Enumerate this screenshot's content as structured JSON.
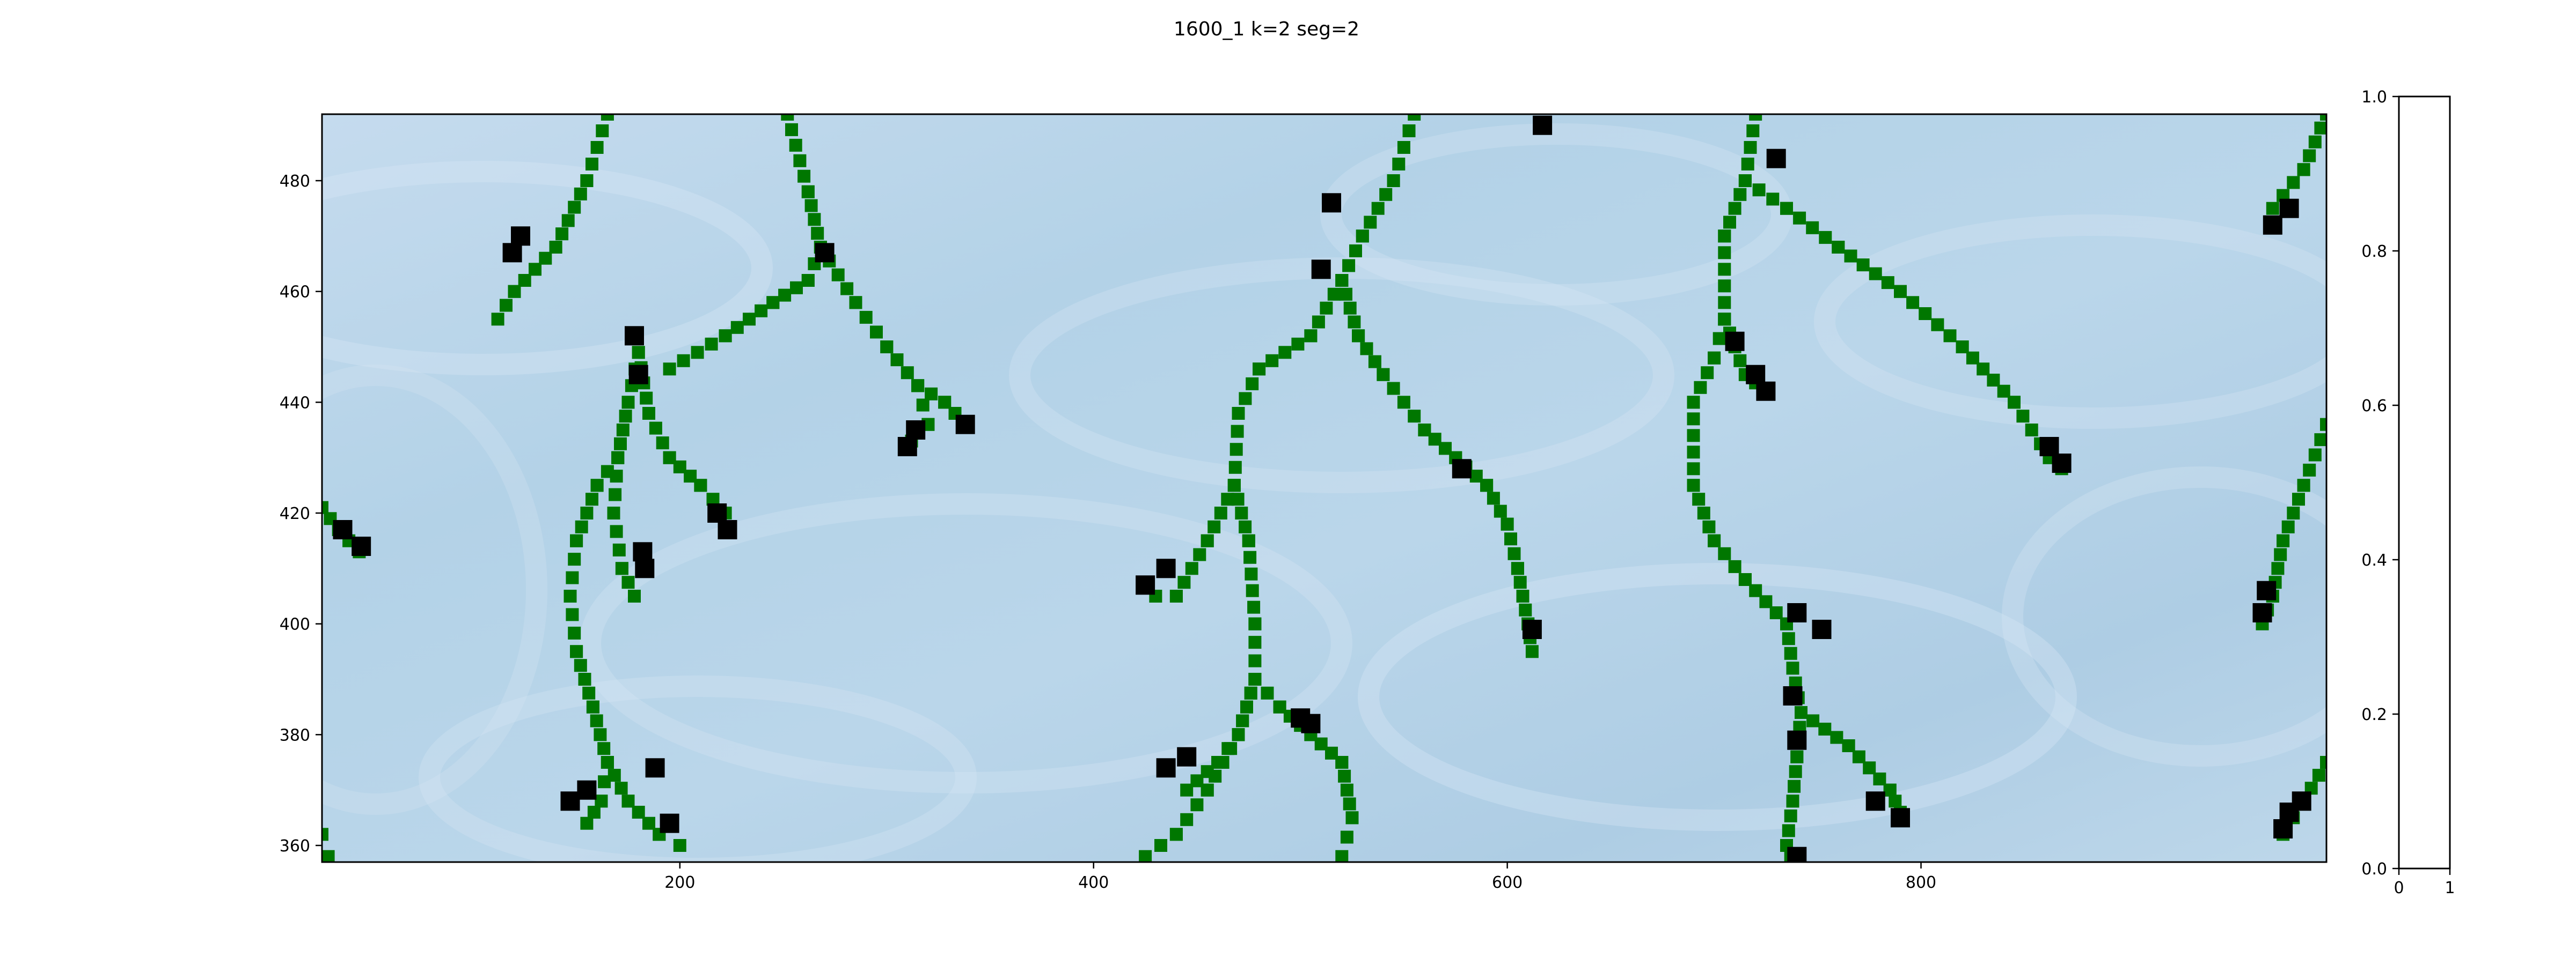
{
  "chart_data": [
    {
      "type": "heatmap",
      "title": "1600_1 k=2   seg=2",
      "xlim": [
        27,
        996
      ],
      "ylim": [
        357,
        492
      ],
      "x_ticks": [
        200,
        400,
        600,
        800
      ],
      "y_ticks": [
        360,
        380,
        400,
        420,
        440,
        460,
        480
      ],
      "x_tick_labels": [
        "200",
        "400",
        "600",
        "800"
      ],
      "y_tick_labels": [
        "360",
        "380",
        "400",
        "420",
        "440",
        "460",
        "480"
      ],
      "background": "blue-white smoothly varying field (colormap Blues)",
      "colors": {
        "background_light": "#cfe0f0",
        "background_mid": "#b5d3e8",
        "background_dark": "#a6c8e0",
        "path_marker": "#007700",
        "endpoint_marker": "#000000"
      },
      "series": [
        {
          "name": "",
          "color": "#007700",
          "paths": [
            [
              [
                165,
                492
              ],
              [
                155,
                480
              ],
              [
                140,
                468
              ],
              [
                120,
                460
              ],
              [
                112,
                455
              ]
            ],
            [
              [
                252,
                492
              ],
              [
                262,
                478
              ],
              [
                268,
                468
              ],
              [
                262,
                462
              ],
              [
                245,
                458
              ],
              [
                222,
                452
              ],
              [
                195,
                446
              ]
            ],
            [
              [
                268,
                468
              ],
              [
                285,
                458
              ],
              [
                300,
                450
              ],
              [
                315,
                443
              ],
              [
                320,
                436
              ],
              [
                312,
                433
              ]
            ],
            [
              [
                315,
                443
              ],
              [
                328,
                440
              ],
              [
                338,
                436
              ]
            ],
            [
              [
                180,
                449
              ],
              [
                175,
                440
              ],
              [
                170,
                430
              ],
              [
                168,
                420
              ],
              [
                172,
                410
              ],
              [
                178,
                405
              ]
            ],
            [
              [
                180,
                449
              ],
              [
                185,
                438
              ],
              [
                195,
                430
              ],
              [
                210,
                425
              ],
              [
                222,
                420
              ]
            ],
            [
              [
                170,
                430
              ],
              [
                160,
                425
              ],
              [
                150,
                415
              ],
              [
                147,
                405
              ],
              [
                150,
                395
              ],
              [
                158,
                385
              ],
              [
                165,
                375
              ],
              [
                162,
                368
              ],
              [
                155,
                364
              ]
            ],
            [
              [
                165,
                375
              ],
              [
                175,
                368
              ],
              [
                190,
                362
              ],
              [
                200,
                360
              ]
            ],
            [
              [
                555,
                492
              ],
              [
                545,
                480
              ],
              [
                530,
                470
              ],
              [
                520,
                462
              ],
              [
                505,
                452
              ],
              [
                480,
                446
              ],
              [
                470,
                438
              ],
              [
                468,
                425
              ],
              [
                455,
                415
              ],
              [
                440,
                405
              ],
              [
                430,
                405
              ]
            ],
            [
              [
                520,
                462
              ],
              [
                528,
                452
              ],
              [
                540,
                445
              ],
              [
                560,
                435
              ],
              [
                575,
                430
              ],
              [
                590,
                425
              ],
              [
                600,
                418
              ],
              [
                605,
                410
              ],
              [
                610,
                400
              ],
              [
                612,
                395
              ]
            ],
            [
              [
                468,
                425
              ],
              [
                475,
                415
              ],
              [
                478,
                400
              ],
              [
                478,
                390
              ],
              [
                470,
                380
              ],
              [
                460,
                375
              ],
              [
                445,
                370
              ]
            ],
            [
              [
                478,
                390
              ],
              [
                490,
                385
              ],
              [
                505,
                380
              ],
              [
                520,
                375
              ],
              [
                525,
                365
              ],
              [
                520,
                358
              ]
            ],
            [
              [
                478,
                390
              ],
              [
                470,
                380
              ],
              [
                455,
                370
              ],
              [
                440,
                362
              ],
              [
                425,
                358
              ]
            ],
            [
              [
                720,
                492
              ],
              [
                715,
                480
              ],
              [
                705,
                470
              ],
              [
                705,
                455
              ],
              [
                700,
                448
              ],
              [
                690,
                440
              ],
              [
                690,
                425
              ],
              [
                700,
                415
              ],
              [
                715,
                408
              ],
              [
                735,
                400
              ]
            ],
            [
              [
                715,
                480
              ],
              [
                735,
                475
              ],
              [
                760,
                468
              ],
              [
                790,
                460
              ],
              [
                820,
                450
              ],
              [
                845,
                440
              ],
              [
                862,
                430
              ],
              [
                868,
                428
              ]
            ],
            [
              [
                705,
                455
              ],
              [
                715,
                445
              ],
              [
                725,
                442
              ]
            ],
            [
              [
                735,
                400
              ],
              [
                738,
                392
              ],
              [
                742,
                384
              ],
              [
                740,
                376
              ],
              [
                738,
                368
              ],
              [
                735,
                360
              ],
              [
                737,
                358
              ]
            ],
            [
              [
                742,
                384
              ],
              [
                765,
                378
              ],
              [
                785,
                370
              ],
              [
                790,
                366
              ]
            ],
            [
              [
                27,
                421
              ],
              [
                35,
                417
              ],
              [
                45,
                413
              ]
            ],
            [
              [
                996,
                492
              ],
              [
                985,
                482
              ],
              [
                970,
                475
              ]
            ],
            [
              [
                996,
                436
              ],
              [
                985,
                425
              ],
              [
                975,
                415
              ],
              [
                970,
                405
              ],
              [
                965,
                400
              ]
            ],
            [
              [
                996,
                375
              ],
              [
                985,
                368
              ],
              [
                975,
                362
              ]
            ],
            [
              [
                27,
                362
              ],
              [
                30,
                358
              ]
            ]
          ]
        }
      ],
      "endpoints": [
        [
          123,
          470
        ],
        [
          119,
          467
        ],
        [
          270,
          467
        ],
        [
          515,
          476
        ],
        [
          510,
          464
        ],
        [
          178,
          452
        ],
        [
          180,
          445
        ],
        [
          314,
          435
        ],
        [
          310,
          432
        ],
        [
          338,
          436
        ],
        [
          218,
          420
        ],
        [
          223,
          417
        ],
        [
          182,
          413
        ],
        [
          183,
          410
        ],
        [
          425,
          407
        ],
        [
          435,
          410
        ],
        [
          612,
          399
        ],
        [
          578,
          428
        ],
        [
          435,
          374
        ],
        [
          445,
          376
        ],
        [
          500,
          383
        ],
        [
          505,
          382
        ],
        [
          188,
          374
        ],
        [
          155,
          370
        ],
        [
          147,
          368
        ],
        [
          195,
          364
        ],
        [
          617,
          490
        ],
        [
          730,
          484
        ],
        [
          710,
          451
        ],
        [
          720,
          445
        ],
        [
          725,
          442
        ],
        [
          862,
          432
        ],
        [
          868,
          429
        ],
        [
          740,
          402
        ],
        [
          752,
          399
        ],
        [
          738,
          387
        ],
        [
          740,
          379
        ],
        [
          778,
          368
        ],
        [
          790,
          365
        ],
        [
          740,
          358
        ],
        [
          37,
          417
        ],
        [
          46,
          414
        ],
        [
          970,
          472
        ],
        [
          978,
          475
        ],
        [
          965,
          402
        ],
        [
          967,
          406
        ],
        [
          975,
          363
        ],
        [
          978,
          366
        ],
        [
          984,
          368
        ]
      ]
    },
    {
      "type": "heatmap",
      "title": "",
      "xlim": [
        0,
        1
      ],
      "ylim": [
        0,
        1
      ],
      "x_ticks": [
        0,
        1
      ],
      "y_ticks": [
        0.0,
        0.2,
        0.4,
        0.6,
        0.8,
        1.0
      ],
      "x_tick_labels": [
        "0",
        "1"
      ],
      "y_tick_labels": [
        "0.0",
        "0.2",
        "0.4",
        "0.6",
        "0.8",
        "1.0"
      ],
      "values": []
    }
  ]
}
